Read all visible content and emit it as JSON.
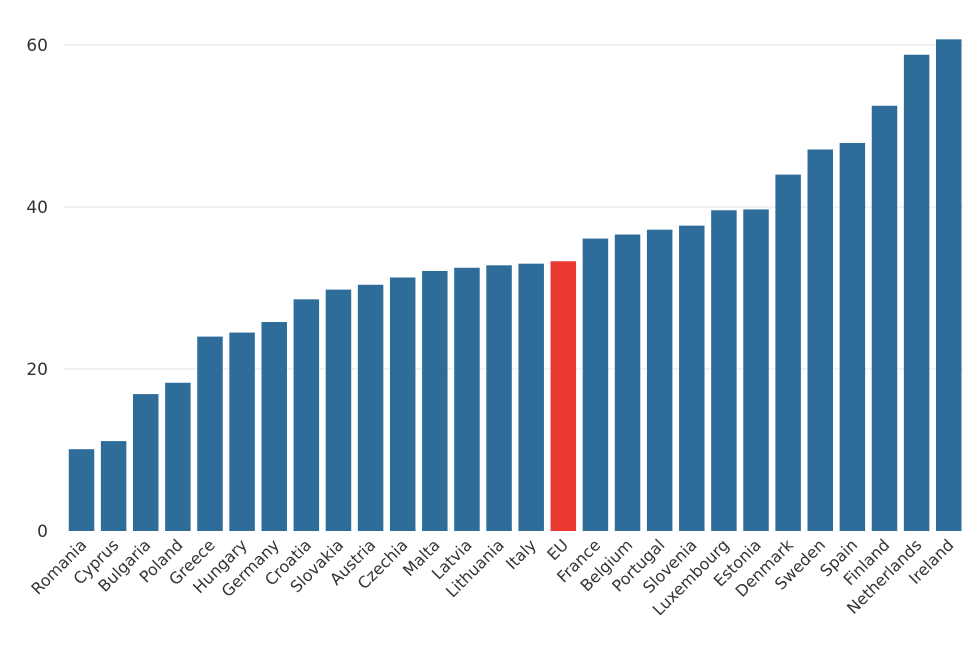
{
  "chart_data": {
    "type": "bar",
    "title": "",
    "xlabel": "",
    "ylabel": "",
    "ylim": [
      0,
      65
    ],
    "yticks": [
      0,
      20,
      40,
      60
    ],
    "grid": true,
    "bar_color": "#2e6d99",
    "highlight_color": "#e8382f",
    "highlight_category": "EU",
    "categories": [
      "Romania",
      "Cyprus",
      "Bulgaria",
      "Poland",
      "Greece",
      "Hungary",
      "Germany",
      "Croatia",
      "Slovakia",
      "Austria",
      "Czechia",
      "Malta",
      "Latvia",
      "Lithuania",
      "Italy",
      "EU",
      "France",
      "Belgium",
      "Portugal",
      "Slovenia",
      "Luxembourg",
      "Estonia",
      "Denmark",
      "Sweden",
      "Spain",
      "Finland",
      "Netherlands",
      "Ireland"
    ],
    "values": [
      10.1,
      11.1,
      16.9,
      18.3,
      24.0,
      24.5,
      25.8,
      28.6,
      29.8,
      30.4,
      31.3,
      32.1,
      32.5,
      32.8,
      33.0,
      33.3,
      36.1,
      36.6,
      37.2,
      37.7,
      39.6,
      39.7,
      44.0,
      47.1,
      47.9,
      52.5,
      58.8,
      60.7
    ]
  }
}
